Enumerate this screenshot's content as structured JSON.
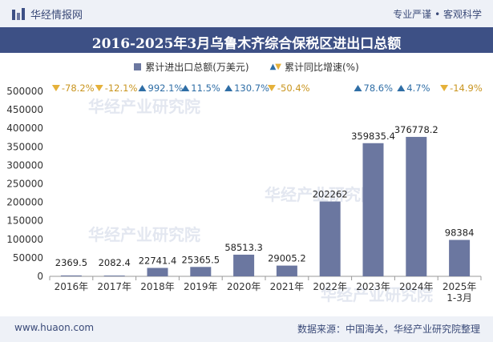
{
  "header": {
    "brand": "华经情报网",
    "tagline": "专业严谨 • 客观科学"
  },
  "title": "2016-2025年3月乌鲁木齐综合保税区进出口总额",
  "legend": {
    "bar_label": "累计进出口总额(万美元)",
    "growth_label": "累计同比增速(%)"
  },
  "watermark": "华经产业研究院",
  "colors": {
    "bar": "#6b77a0",
    "up": "#2f6ea6",
    "down": "#e5b13a",
    "title_bg": "#3d5085"
  },
  "chart_data": {
    "type": "bar",
    "title": "2016-2025年3月乌鲁木齐综合保税区进出口总额",
    "categories": [
      "2016年",
      "2017年",
      "2018年",
      "2019年",
      "2020年",
      "2021年",
      "2022年",
      "2023年",
      "2024年",
      "2025年\n1-3月"
    ],
    "series": [
      {
        "name": "累计进出口总额(万美元)",
        "values": [
          2369.5,
          2082.4,
          22741.4,
          25365.5,
          58513.3,
          29005.2,
          202262,
          359835.4,
          376778.2,
          98384
        ],
        "labels": [
          "2369.5",
          "2082.4",
          "22741.4",
          "25365.5",
          "58513.3",
          "29005.2",
          "202262",
          "359835.4",
          "376778.2",
          "98384"
        ]
      },
      {
        "name": "累计同比增速(%)",
        "values": [
          -78.2,
          -12.1,
          992.1,
          11.5,
          130.7,
          -50.4,
          null,
          78.6,
          4.7,
          -14.9
        ],
        "labels": [
          "-78.2%",
          "-12.1%",
          "992.1%",
          "11.5%",
          "130.7%",
          "-50.4%",
          "",
          "78.6%",
          "4.7%",
          "-14.9%"
        ]
      }
    ],
    "ylim": [
      0,
      500000
    ],
    "yticks": [
      0,
      50000,
      100000,
      150000,
      200000,
      250000,
      300000,
      350000,
      400000,
      450000,
      500000
    ],
    "ytick_labels": [
      "0",
      "50000",
      "100000",
      "150000",
      "200000",
      "250000",
      "300000",
      "350000",
      "400000",
      "450000",
      "500000"
    ],
    "xlabel": "",
    "ylabel": ""
  },
  "footer": {
    "website": "www.huaon.com",
    "source": "数据来源：中国海关，华经产业研究院整理"
  }
}
